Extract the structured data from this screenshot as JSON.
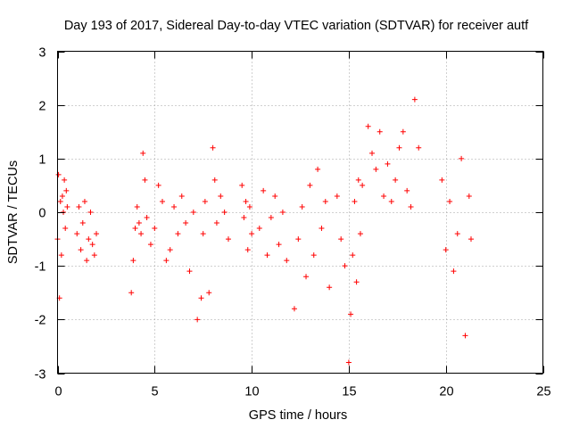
{
  "chart_data": {
    "type": "scatter",
    "title": "Day 193 of 2017, Sidereal Day-to-day VTEC variation (SDTVAR) for receiver autf",
    "xlabel": "GPS time / hours",
    "ylabel": "SDTVAR / TECUs",
    "xlim": [
      0,
      25
    ],
    "ylim": [
      -3,
      3
    ],
    "x_ticks": [
      0,
      5,
      10,
      15,
      20,
      25
    ],
    "y_ticks": [
      -3,
      -2,
      -1,
      0,
      1,
      2,
      3
    ],
    "x_tick_labels": [
      "0",
      "5",
      "10",
      "15",
      "20",
      "25"
    ],
    "y_tick_labels": [
      "-3",
      "-2",
      "-1",
      "0",
      "1",
      "2",
      "3"
    ],
    "grid": true,
    "marker": "+",
    "series": [
      {
        "name": "SDTVAR",
        "color": "#ff0000",
        "x": [
          0.0,
          0.05,
          0.1,
          0.15,
          0.2,
          0.25,
          0.3,
          0.35,
          0.4,
          0.45,
          0.5,
          1.0,
          1.1,
          1.2,
          1.3,
          1.4,
          1.5,
          1.6,
          1.7,
          1.8,
          1.9,
          2.0,
          3.8,
          3.9,
          4.0,
          4.1,
          4.2,
          4.3,
          4.4,
          4.5,
          4.6,
          4.8,
          5.0,
          5.2,
          5.4,
          5.6,
          5.8,
          6.0,
          6.2,
          6.4,
          6.6,
          6.8,
          7.0,
          7.2,
          7.4,
          7.5,
          7.6,
          7.8,
          8.0,
          8.1,
          8.2,
          8.4,
          8.6,
          8.8,
          9.5,
          9.6,
          9.7,
          9.8,
          9.9,
          10.0,
          10.4,
          10.6,
          10.8,
          11.0,
          11.2,
          11.4,
          11.6,
          11.8,
          12.2,
          12.4,
          12.6,
          12.8,
          13.0,
          13.2,
          13.4,
          13.6,
          13.8,
          14.0,
          14.4,
          14.6,
          14.8,
          15.0,
          15.1,
          15.2,
          15.3,
          15.4,
          15.5,
          15.6,
          15.7,
          16.0,
          16.2,
          16.4,
          16.6,
          16.8,
          17.0,
          17.2,
          17.4,
          17.6,
          17.8,
          18.0,
          18.2,
          18.4,
          18.6,
          19.8,
          20.0,
          20.2,
          20.4,
          20.6,
          20.8,
          21.0,
          21.2,
          21.3
        ],
        "y": [
          -0.5,
          0.7,
          -1.6,
          0.2,
          -0.8,
          0.3,
          0.0,
          0.6,
          -0.3,
          0.4,
          0.1,
          -0.4,
          0.1,
          -0.7,
          -0.2,
          0.2,
          -0.9,
          -0.5,
          0.0,
          -0.6,
          -0.8,
          -0.4,
          -1.5,
          -0.9,
          -0.3,
          0.1,
          -0.2,
          -0.4,
          1.1,
          0.6,
          -0.1,
          -0.6,
          -0.3,
          0.5,
          0.2,
          -0.9,
          -0.7,
          0.1,
          -0.4,
          0.3,
          -0.2,
          -1.1,
          0.0,
          -2.0,
          -1.6,
          -0.4,
          0.2,
          -1.5,
          1.2,
          0.6,
          -0.2,
          0.3,
          0.0,
          -0.5,
          0.5,
          -0.1,
          0.2,
          -0.7,
          0.1,
          -0.4,
          -0.3,
          0.4,
          -0.8,
          -0.1,
          0.3,
          -0.6,
          0.0,
          -0.9,
          -1.8,
          -0.5,
          0.1,
          -1.2,
          0.5,
          -0.8,
          0.8,
          -0.3,
          0.2,
          -1.4,
          0.3,
          -0.5,
          -1.0,
          -2.8,
          -1.9,
          -0.8,
          0.2,
          -1.3,
          0.6,
          -0.4,
          0.5,
          1.6,
          1.1,
          0.8,
          1.5,
          0.3,
          0.9,
          0.2,
          0.6,
          1.2,
          1.5,
          0.4,
          0.1,
          2.1,
          1.2,
          0.6,
          -0.7,
          0.2,
          -1.1,
          -0.4,
          1.0,
          -2.3,
          0.3,
          -0.5
        ]
      }
    ]
  }
}
